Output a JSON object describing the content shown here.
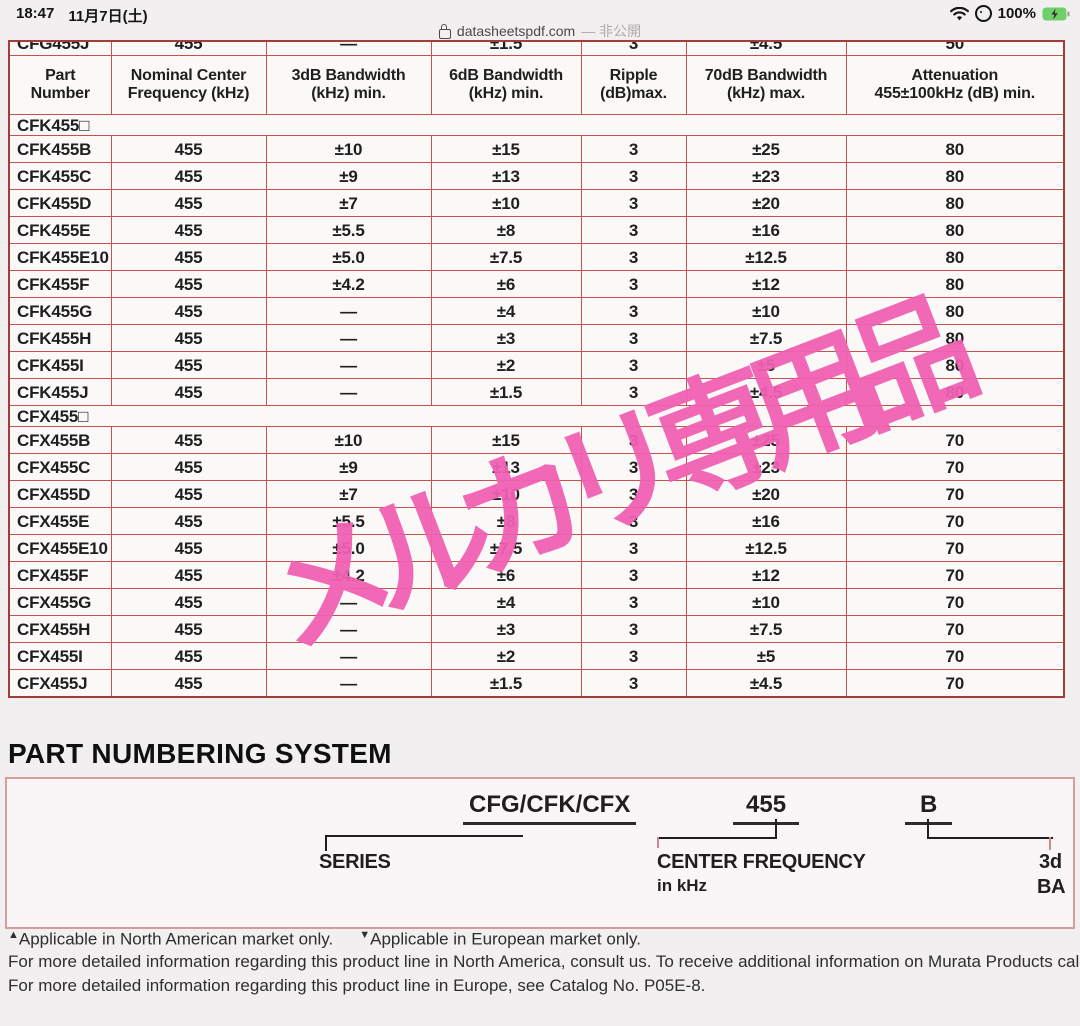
{
  "status_bar": {
    "time": "18:47",
    "date": "11月7日(土)",
    "battery_percent": "100%"
  },
  "url_bar": {
    "domain": "datasheetspdf.com",
    "privacy_label": "— 非公開"
  },
  "watermark": {
    "text": "メルカリ専用品",
    "color": "#f160b2"
  },
  "spec_table": {
    "clipped_row": [
      "CFG455J",
      "455",
      "—",
      "±1.5",
      "3",
      "±4.5",
      "50"
    ],
    "headers": [
      {
        "line1": "Part",
        "line2": "Number"
      },
      {
        "line1": "Nominal Center",
        "line2": "Frequency (kHz)"
      },
      {
        "line1": "3dB Bandwidth",
        "line2": "(kHz) min."
      },
      {
        "line1": "6dB Bandwidth",
        "line2": "(kHz) min."
      },
      {
        "line1": "Ripple",
        "line2": "(dB)max."
      },
      {
        "line1": "70dB Bandwidth",
        "line2": "(kHz) max."
      },
      {
        "line1": "Attenuation",
        "line2": "455±100kHz (dB) min."
      }
    ],
    "sections": [
      {
        "title": "CFK455□",
        "rows": [
          [
            "CFK455B",
            "455",
            "±10",
            "±15",
            "3",
            "±25",
            "80"
          ],
          [
            "CFK455C",
            "455",
            "±9",
            "±13",
            "3",
            "±23",
            "80"
          ],
          [
            "CFK455D",
            "455",
            "±7",
            "±10",
            "3",
            "±20",
            "80"
          ],
          [
            "CFK455E",
            "455",
            "±5.5",
            "±8",
            "3",
            "±16",
            "80"
          ],
          [
            "CFK455E10",
            "455",
            "±5.0",
            "±7.5",
            "3",
            "±12.5",
            "80"
          ],
          [
            "CFK455F",
            "455",
            "±4.2",
            "±6",
            "3",
            "±12",
            "80"
          ],
          [
            "CFK455G",
            "455",
            "—",
            "±4",
            "3",
            "±10",
            "80"
          ],
          [
            "CFK455H",
            "455",
            "—",
            "±3",
            "3",
            "±7.5",
            "80"
          ],
          [
            "CFK455I",
            "455",
            "—",
            "±2",
            "3",
            "±5",
            "80"
          ],
          [
            "CFK455J",
            "455",
            "—",
            "±1.5",
            "3",
            "±4.5",
            "80"
          ]
        ]
      },
      {
        "title": "CFX455□",
        "rows": [
          [
            "CFX455B",
            "455",
            "±10",
            "±15",
            "3",
            "±25",
            "70"
          ],
          [
            "CFX455C",
            "455",
            "±9",
            "±13",
            "3",
            "±23",
            "70"
          ],
          [
            "CFX455D",
            "455",
            "±7",
            "±10",
            "3",
            "±20",
            "70"
          ],
          [
            "CFX455E",
            "455",
            "±5.5",
            "±8",
            "3",
            "±16",
            "70"
          ],
          [
            "CFX455E10",
            "455",
            "±5.0",
            "±7.5",
            "3",
            "±12.5",
            "70"
          ],
          [
            "CFX455F",
            "455",
            "±4.2",
            "±6",
            "3",
            "±12",
            "70"
          ],
          [
            "CFX455G",
            "455",
            "—",
            "±4",
            "3",
            "±10",
            "70"
          ],
          [
            "CFX455H",
            "455",
            "—",
            "±3",
            "3",
            "±7.5",
            "70"
          ],
          [
            "CFX455I",
            "455",
            "—",
            "±2",
            "3",
            "±5",
            "70"
          ],
          [
            "CFX455J",
            "455",
            "—",
            "±1.5",
            "3",
            "±4.5",
            "70"
          ]
        ]
      }
    ]
  },
  "part_numbering": {
    "title": "PART NUMBERING SYSTEM",
    "series_value": "CFG/CFK/CFX",
    "series_label": "SERIES",
    "frequency_value": "455",
    "frequency_label": "CENTER FREQUENCY",
    "frequency_unit": "in kHz",
    "suffix_value": "B",
    "suffix_label_clipped_line1": "3d",
    "suffix_label_clipped_line2": "BA"
  },
  "notes": {
    "marker_a": "▲",
    "note_a": "Applicable in North American market only.",
    "marker_b": "▼",
    "note_b": "Applicable in European market only.",
    "line2": "For more detailed information regarding this product line in North America, consult us. To receive additional information on Murata Products cal",
    "line3": "For more detailed information regarding this product line in Europe, see Catalog No. P05E-8."
  }
}
